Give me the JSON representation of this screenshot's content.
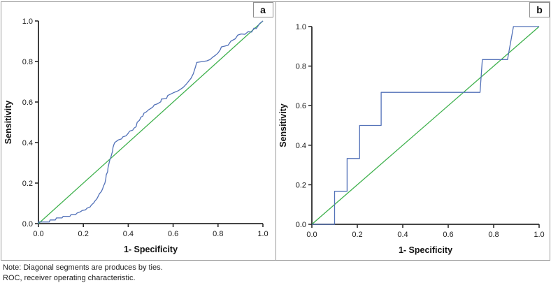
{
  "notes": [
    "Note: Diagonal segments are produces by ties.",
    "ROC, receiver operating characteristic."
  ],
  "colors": {
    "axis": "#2b2b2b",
    "roc_curve": "#5271b8",
    "reference_line": "#3fb14d",
    "panel_border": "#9a9a9a"
  },
  "chart_data": [
    {
      "type": "line",
      "panel_label": "a",
      "xlabel": "1- Specificity",
      "ylabel": "Sensitivity",
      "xlim": [
        0,
        1
      ],
      "ylim": [
        0,
        1
      ],
      "grid": false,
      "legend": "none",
      "xtick_labels": [
        "0.0",
        "0.2",
        "0.4",
        "0.6",
        "0.8",
        "1.0"
      ],
      "ytick_labels": [
        "0.0",
        "0.2",
        "0.4",
        "0.6",
        "0.8",
        "1.0"
      ],
      "series": [
        {
          "name": "ROC curve",
          "color": "#5271b8",
          "points": [
            [
              0,
              0
            ],
            [
              0,
              0.008
            ],
            [
              0.048,
              0.008
            ],
            [
              0.052,
              0.018
            ],
            [
              0.075,
              0.018
            ],
            [
              0.08,
              0.028
            ],
            [
              0.105,
              0.028
            ],
            [
              0.11,
              0.036
            ],
            [
              0.14,
              0.036
            ],
            [
              0.145,
              0.044
            ],
            [
              0.165,
              0.044
            ],
            [
              0.172,
              0.052
            ],
            [
              0.186,
              0.058
            ],
            [
              0.196,
              0.065
            ],
            [
              0.21,
              0.068
            ],
            [
              0.216,
              0.076
            ],
            [
              0.23,
              0.082
            ],
            [
              0.236,
              0.092
            ],
            [
              0.246,
              0.102
            ],
            [
              0.252,
              0.112
            ],
            [
              0.26,
              0.122
            ],
            [
              0.266,
              0.135
            ],
            [
              0.272,
              0.148
            ],
            [
              0.28,
              0.158
            ],
            [
              0.286,
              0.172
            ],
            [
              0.29,
              0.186
            ],
            [
              0.296,
              0.2
            ],
            [
              0.3,
              0.22
            ],
            [
              0.302,
              0.24
            ],
            [
              0.308,
              0.256
            ],
            [
              0.31,
              0.276
            ],
            [
              0.314,
              0.296
            ],
            [
              0.318,
              0.315
            ],
            [
              0.322,
              0.326
            ],
            [
              0.327,
              0.346
            ],
            [
              0.33,
              0.356
            ],
            [
              0.332,
              0.376
            ],
            [
              0.336,
              0.39
            ],
            [
              0.34,
              0.4
            ],
            [
              0.35,
              0.408
            ],
            [
              0.356,
              0.413
            ],
            [
              0.37,
              0.418
            ],
            [
              0.376,
              0.428
            ],
            [
              0.39,
              0.433
            ],
            [
              0.4,
              0.446
            ],
            [
              0.406,
              0.456
            ],
            [
              0.42,
              0.461
            ],
            [
              0.426,
              0.471
            ],
            [
              0.435,
              0.478
            ],
            [
              0.44,
              0.5
            ],
            [
              0.45,
              0.51
            ],
            [
              0.456,
              0.525
            ],
            [
              0.465,
              0.531
            ],
            [
              0.47,
              0.545
            ],
            [
              0.48,
              0.551
            ],
            [
              0.49,
              0.561
            ],
            [
              0.5,
              0.568
            ],
            [
              0.51,
              0.576
            ],
            [
              0.516,
              0.586
            ],
            [
              0.53,
              0.591
            ],
            [
              0.545,
              0.601
            ],
            [
              0.548,
              0.615
            ],
            [
              0.57,
              0.617
            ],
            [
              0.576,
              0.632
            ],
            [
              0.6,
              0.645
            ],
            [
              0.623,
              0.656
            ],
            [
              0.645,
              0.672
            ],
            [
              0.66,
              0.69
            ],
            [
              0.68,
              0.718
            ],
            [
              0.69,
              0.74
            ],
            [
              0.7,
              0.775
            ],
            [
              0.705,
              0.795
            ],
            [
              0.72,
              0.798
            ],
            [
              0.75,
              0.803
            ],
            [
              0.765,
              0.81
            ],
            [
              0.775,
              0.82
            ],
            [
              0.79,
              0.832
            ],
            [
              0.8,
              0.842
            ],
            [
              0.81,
              0.858
            ],
            [
              0.815,
              0.872
            ],
            [
              0.83,
              0.876
            ],
            [
              0.845,
              0.88
            ],
            [
              0.857,
              0.9
            ],
            [
              0.877,
              0.912
            ],
            [
              0.888,
              0.93
            ],
            [
              0.903,
              0.936
            ],
            [
              0.92,
              0.934
            ],
            [
              0.934,
              0.947
            ],
            [
              0.95,
              0.945
            ],
            [
              0.96,
              0.965
            ],
            [
              0.97,
              0.962
            ],
            [
              0.986,
              0.988
            ],
            [
              1,
              1
            ]
          ]
        },
        {
          "name": "Reference line",
          "color": "#3fb14d",
          "points": [
            [
              0,
              0
            ],
            [
              1,
              1
            ]
          ]
        }
      ]
    },
    {
      "type": "line",
      "panel_label": "b",
      "xlabel": "1- Specificity",
      "ylabel": "Sensitivity",
      "xlim": [
        0,
        1
      ],
      "ylim": [
        0,
        1
      ],
      "grid": false,
      "legend": "none",
      "xtick_labels": [
        "0.0",
        "0.2",
        "0.4",
        "0.6",
        "0.8",
        "1.0"
      ],
      "ytick_labels": [
        "0.0",
        "0.2",
        "0.4",
        "0.6",
        "0.8",
        "1.0"
      ],
      "series": [
        {
          "name": "ROC curve",
          "color": "#5271b8",
          "points": [
            [
              0,
              0
            ],
            [
              0.1,
              0
            ],
            [
              0.1,
              0.167
            ],
            [
              0.155,
              0.167
            ],
            [
              0.155,
              0.333
            ],
            [
              0.21,
              0.333
            ],
            [
              0.21,
              0.5
            ],
            [
              0.305,
              0.5
            ],
            [
              0.305,
              0.667
            ],
            [
              0.74,
              0.667
            ],
            [
              0.75,
              0.833
            ],
            [
              0.861,
              0.833
            ],
            [
              0.887,
              1
            ],
            [
              1,
              1
            ]
          ]
        },
        {
          "name": "Reference line",
          "color": "#3fb14d",
          "points": [
            [
              0,
              0
            ],
            [
              1,
              1
            ]
          ]
        }
      ]
    }
  ]
}
